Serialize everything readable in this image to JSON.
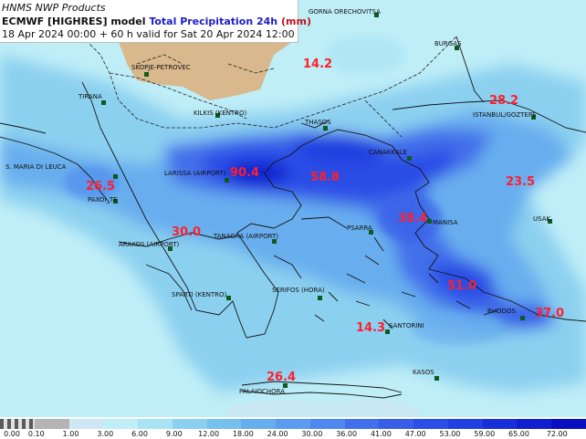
{
  "header": {
    "line1": "HNMS NWP Products",
    "model_label": "ECMWF [HIGHRES] model",
    "param_label": "Total Precipitation 24h",
    "unit_label": "(mm)",
    "line3": "18 Apr 2024 00:00 + 60 h valid for Sat 20 Apr 2024 12:00"
  },
  "colors": {
    "land": "#d8b88c",
    "sea_light": "#bfeef7",
    "precip_light": "#8cd0f0",
    "precip_mid": "#5b9cf0",
    "precip_high": "#2b4ee6",
    "precip_max": "#1020d0",
    "value_text": "#ff1f2e",
    "station": "#0e5a1e"
  },
  "cities": [
    {
      "name": "GORNA ORECHOVITSA"
    },
    {
      "name": "SKOPJE-PETROVEC"
    },
    {
      "name": "BURGAS"
    },
    {
      "name": "TIRANA"
    },
    {
      "name": "ISTANBUL/GOZTEPE"
    },
    {
      "name": "KILKIS (KENTRO)"
    },
    {
      "name": "THASOS"
    },
    {
      "name": "CANAKKALE"
    },
    {
      "name": "S. MARIA DI LEUCA"
    },
    {
      "name": "LARISSA (AIRPORT)"
    },
    {
      "name": "PAXOI_TE"
    },
    {
      "name": "PSARRA"
    },
    {
      "name": "MANISA"
    },
    {
      "name": "USAK"
    },
    {
      "name": "ARAXOS (AIRPORT)"
    },
    {
      "name": "TANAGRA (AIRPORT)"
    },
    {
      "name": "SPARTI (KENTRO)"
    },
    {
      "name": "SERIFOS (HORA)"
    },
    {
      "name": "SANTORINI"
    },
    {
      "name": "RHODOS"
    },
    {
      "name": "KASOS"
    },
    {
      "name": "PALAIOCHORA"
    }
  ],
  "values": [
    {
      "text": "14.2"
    },
    {
      "text": "28.2"
    },
    {
      "text": "90.4"
    },
    {
      "text": "58.8"
    },
    {
      "text": "23.5"
    },
    {
      "text": "26.5"
    },
    {
      "text": "30.0"
    },
    {
      "text": "38.4"
    },
    {
      "text": "51.0"
    },
    {
      "text": "37.0"
    },
    {
      "text": "14.3"
    },
    {
      "text": "26.4"
    }
  ],
  "colorbar": {
    "ticks": [
      "0.00",
      "0.10",
      "1.00",
      "3.00",
      "6.00",
      "9.00",
      "12.00",
      "18.00",
      "24.00",
      "30.00",
      "36.00",
      "41.00",
      "47.00",
      "53.00",
      "59.00",
      "65.00",
      "72.00"
    ],
    "colors": [
      "#7a7a7a",
      "#b4b4b4",
      "#cfe6f5",
      "#bfeef7",
      "#a9e4f5",
      "#8cd0f0",
      "#76c0ee",
      "#67aeee",
      "#5b9cf0",
      "#4e88ee",
      "#4270ea",
      "#385ee8",
      "#2b4ee6",
      "#2040e0",
      "#1830da",
      "#1020d0",
      "#0a10c0"
    ]
  }
}
